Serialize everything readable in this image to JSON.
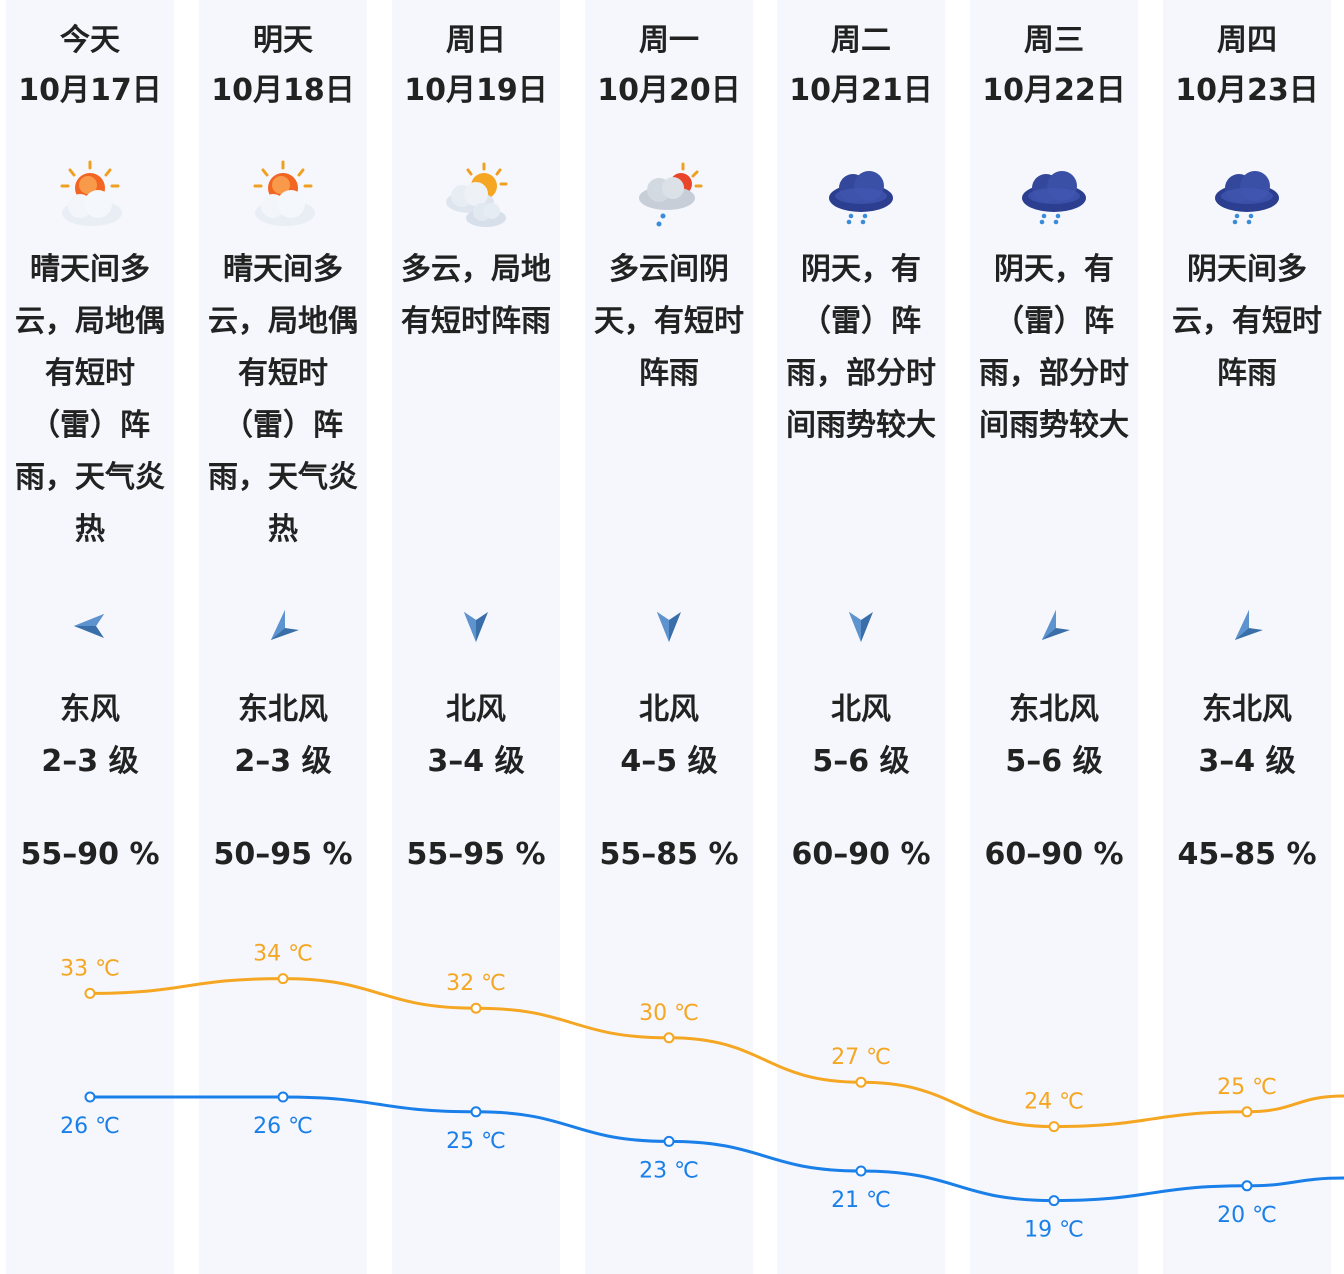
{
  "days": [
    {
      "day": "今天",
      "date": "10月17日",
      "icon": "partly-sunny-icon",
      "desc": "晴天间多云，局地偶有短时（雷）阵雨，天气炎热",
      "wind_dir": "东风",
      "wind_dir_icon": "arrow-left-icon",
      "wind_level": "2–3 级",
      "humidity": "55–90 %",
      "high": "33 ℃",
      "low": "26 ℃"
    },
    {
      "day": "明天",
      "date": "10月18日",
      "icon": "partly-sunny-icon",
      "desc": "晴天间多云，局地偶有短时（雷）阵雨，天气炎热",
      "wind_dir": "东北风",
      "wind_dir_icon": "arrow-up-right-icon",
      "wind_level": "2–3 级",
      "humidity": "50–95 %",
      "high": "34 ℃",
      "low": "26 ℃"
    },
    {
      "day": "周日",
      "date": "10月19日",
      "icon": "cloudy-sun-icon",
      "desc": "多云，局地有短时阵雨",
      "wind_dir": "北风",
      "wind_dir_icon": "arrow-down-icon",
      "wind_level": "3–4 级",
      "humidity": "55–95 %",
      "high": "32 ℃",
      "low": "25 ℃"
    },
    {
      "day": "周一",
      "date": "10月20日",
      "icon": "cloud-sun-rain-icon",
      "desc": "多云间阴天，有短时阵雨",
      "wind_dir": "北风",
      "wind_dir_icon": "arrow-down-icon",
      "wind_level": "4–5 级",
      "humidity": "55–85 %",
      "high": "30 ℃",
      "low": "23 ℃"
    },
    {
      "day": "周二",
      "date": "10月21日",
      "icon": "rain-cloud-icon",
      "desc": "阴天，有（雷）阵雨，部分时间雨势较大",
      "wind_dir": "北风",
      "wind_dir_icon": "arrow-down-icon",
      "wind_level": "5–6 级",
      "humidity": "60–90 %",
      "high": "27 ℃",
      "low": "21 ℃"
    },
    {
      "day": "周三",
      "date": "10月22日",
      "icon": "rain-cloud-icon",
      "desc": "阴天，有（雷）阵雨，部分时间雨势较大",
      "wind_dir": "东北风",
      "wind_dir_icon": "arrow-up-right-icon",
      "wind_level": "5–6 级",
      "humidity": "60–90 %",
      "high": "24 ℃",
      "low": "19 ℃"
    },
    {
      "day": "周四",
      "date": "10月23日",
      "icon": "rain-cloud-icon",
      "desc": "阴天间多云，有短时阵雨",
      "wind_dir": "东北风",
      "wind_dir_icon": "arrow-up-right-icon",
      "wind_level": "3–4 级",
      "humidity": "45–85 %",
      "high": "25 ℃",
      "low": "20 ℃"
    }
  ],
  "temps": {
    "high_values": [
      33,
      34,
      32,
      30,
      27,
      24,
      25
    ],
    "low_values": [
      26,
      26,
      25,
      23,
      21,
      19,
      20
    ],
    "high_color": "#f5a623",
    "low_color": "#1a7fe8"
  },
  "colors": {
    "column_bg": "#f5f7fc",
    "text": "#222222"
  }
}
